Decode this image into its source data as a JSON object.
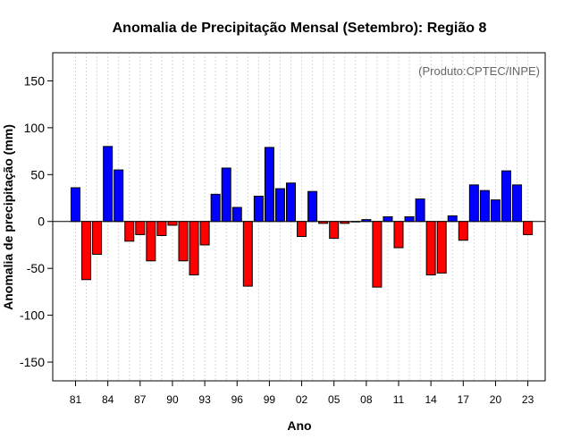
{
  "chart_data": {
    "type": "bar",
    "title": "Anomalia de Precipitação Mensal (Setembro): Região 8",
    "credit": "(Produto:CPTEC/INPE)",
    "xlabel": "Ano",
    "ylabel": "Anomalia de precipitação (mm)",
    "ylim": [
      -170,
      180
    ],
    "yticks": [
      -150,
      -100,
      -50,
      0,
      50,
      100,
      150
    ],
    "xtick_labels": [
      "81",
      "84",
      "87",
      "90",
      "93",
      "96",
      "99",
      "02",
      "05",
      "08",
      "11",
      "14",
      "17",
      "20",
      "23"
    ],
    "xtick_every": 3,
    "grid": true,
    "colors": {
      "positive": "#0000ff",
      "negative": "#ff0000",
      "grid": "#d9d9d9",
      "axis": "#000000",
      "credit": "#666666"
    },
    "categories": [
      "1981",
      "1982",
      "1983",
      "1984",
      "1985",
      "1986",
      "1987",
      "1988",
      "1989",
      "1990",
      "1991",
      "1992",
      "1993",
      "1994",
      "1995",
      "1996",
      "1997",
      "1998",
      "1999",
      "2000",
      "2001",
      "2002",
      "2003",
      "2004",
      "2005",
      "2006",
      "2007",
      "2008",
      "2009",
      "2010",
      "2011",
      "2012",
      "2013",
      "2014",
      "2015",
      "2016",
      "2017",
      "2018",
      "2019",
      "2020",
      "2021",
      "2022",
      "2023"
    ],
    "values": [
      36,
      -62,
      -35,
      80,
      55,
      -21,
      -14,
      -42,
      -15,
      -4,
      -42,
      -57,
      -25,
      29,
      57,
      15,
      -69,
      27,
      79,
      35,
      41,
      -16,
      32,
      -2,
      -18,
      -2,
      0,
      2,
      -70,
      5,
      -28,
      5,
      24,
      -57,
      -55,
      6,
      -20,
      39,
      33,
      23,
      54,
      39,
      -14
    ]
  }
}
